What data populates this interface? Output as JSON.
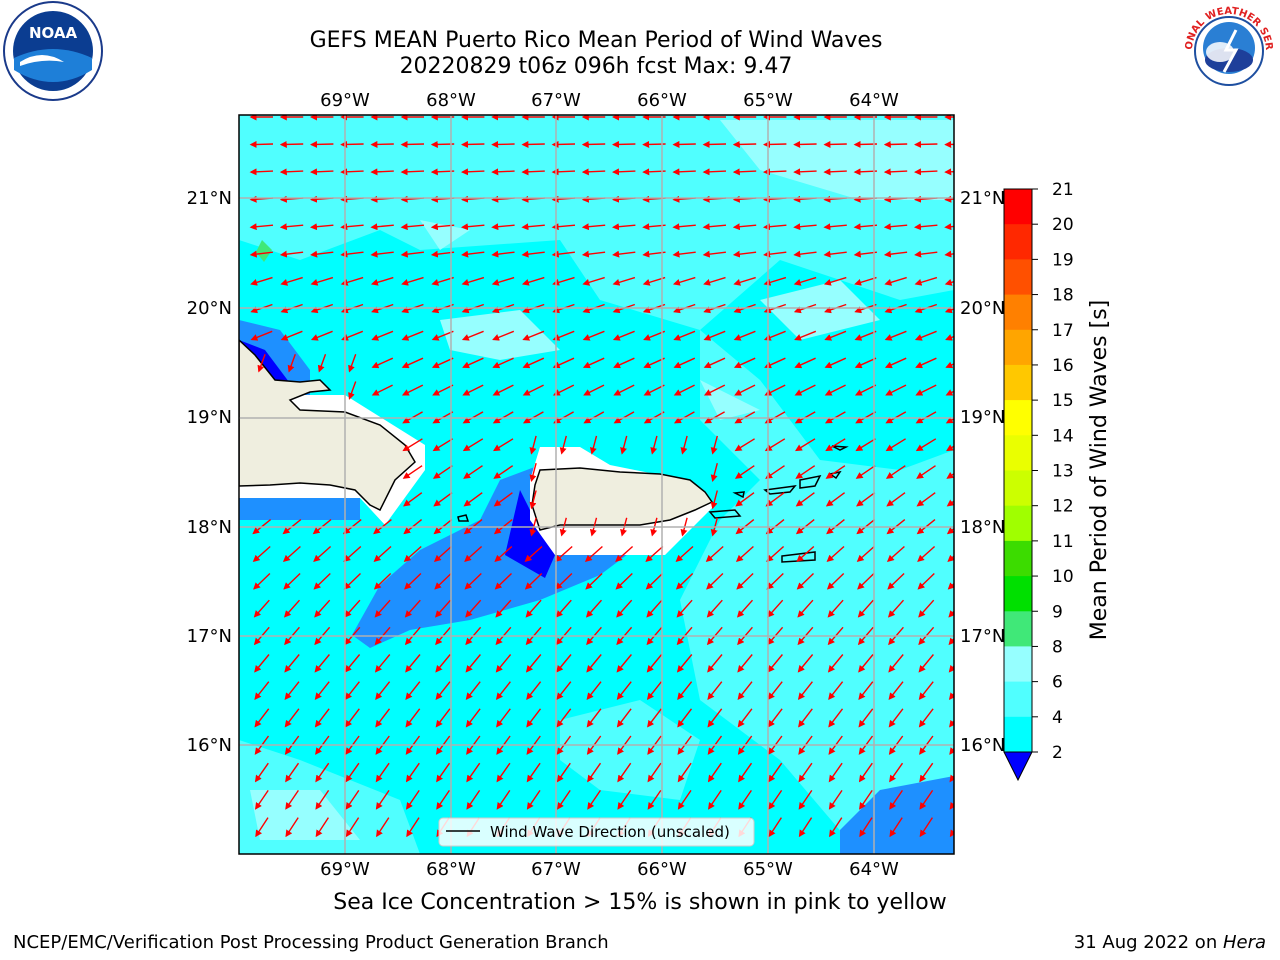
{
  "title": {
    "line1": "GEFS MEAN Puerto Rico Mean Period of Wind Waves",
    "line2": "20220829 t06z 096h fcst   Max: 9.47"
  },
  "logos": {
    "left": {
      "icon": "noaa-logo",
      "text": "NOAA"
    },
    "right": {
      "icon": "nws-logo",
      "text": "NATIONAL WEATHER SERVICE"
    }
  },
  "map": {
    "lon_labels": [
      "69°W",
      "68°W",
      "67°W",
      "66°W",
      "65°W",
      "64°W"
    ],
    "lat_labels": [
      "21°N",
      "20°N",
      "19°N",
      "18°N",
      "17°N",
      "16°N"
    ],
    "legend_label": "Wind Wave Direction (unscaled)",
    "arrow_color": "#ff0000"
  },
  "colorbar": {
    "label": "Mean Period of Wind Waves [s]",
    "ticks": [
      "21",
      "20",
      "19",
      "18",
      "17",
      "16",
      "15",
      "14",
      "13",
      "12",
      "11",
      "10",
      "9",
      "8",
      "6",
      "4",
      "2"
    ],
    "colors": [
      "#ff0000",
      "#ff2800",
      "#ff5000",
      "#ff8000",
      "#ffa500",
      "#ffc800",
      "#ffff00",
      "#eaff00",
      "#ccff00",
      "#a0ff00",
      "#3cdc00",
      "#00e000",
      "#40e878",
      "#96ffff",
      "#50ffff",
      "#00ffff",
      "#1e90ff",
      "#0000ff"
    ]
  },
  "footer": {
    "ice_note": "Sea Ice Concentration > 15% is shown in pink to yellow",
    "org": "NCEP/EMC/Verification Post Processing Product Generation Branch",
    "date": "31 Aug 2022 on ",
    "machine": "Hera"
  }
}
